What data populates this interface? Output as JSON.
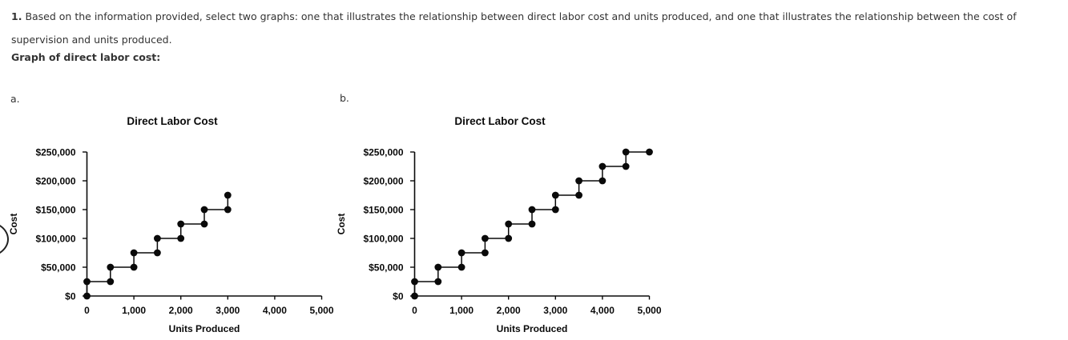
{
  "question": {
    "number": "1.",
    "text": "Based on the information provided, select two graphs: one that illustrates the relationship between direct labor cost and units produced, and one that illustrates the relationship between the cost of supervision and units produced.",
    "subheading": "Graph of direct labor cost:"
  },
  "options": [
    {
      "label": "a."
    },
    {
      "label": "b."
    }
  ],
  "annotation": {
    "type": "partial-circle-mark",
    "position": "left-edge"
  },
  "colors": {
    "chart_ink": "#0a0a0a",
    "body_text": "#333333"
  },
  "chart_data": [
    {
      "type": "line",
      "subtype": "step",
      "option": "a",
      "title": "Direct Labor Cost",
      "xlabel": "Units Produced",
      "ylabel": "Cost",
      "xlim": [
        0,
        5000
      ],
      "ylim": [
        0,
        250000
      ],
      "xticks": [
        0,
        1000,
        2000,
        3000,
        4000,
        5000
      ],
      "xtick_labels": [
        "0",
        "1,000",
        "2,000",
        "3,000",
        "4,000",
        "5,000"
      ],
      "yticks": [
        0,
        50000,
        100000,
        150000,
        200000,
        250000
      ],
      "ytick_labels": [
        "$0",
        "$50,000",
        "$100,000",
        "$150,000",
        "$200,000",
        "$250,000"
      ],
      "grid": false,
      "legend": false,
      "marker": "filled-dot",
      "points": [
        [
          0,
          0
        ],
        [
          0,
          25000
        ],
        [
          500,
          25000
        ],
        [
          500,
          50000
        ],
        [
          1000,
          50000
        ],
        [
          1000,
          75000
        ],
        [
          1500,
          75000
        ],
        [
          1500,
          100000
        ],
        [
          2000,
          100000
        ],
        [
          2000,
          125000
        ],
        [
          2500,
          125000
        ],
        [
          2500,
          150000
        ],
        [
          3000,
          150000
        ],
        [
          3000,
          175000
        ]
      ]
    },
    {
      "type": "line",
      "subtype": "step",
      "option": "b",
      "title": "Direct Labor Cost",
      "xlabel": "Units Produced",
      "ylabel": "Cost",
      "xlim": [
        0,
        5000
      ],
      "ylim": [
        0,
        250000
      ],
      "xticks": [
        0,
        1000,
        2000,
        3000,
        4000,
        5000
      ],
      "xtick_labels": [
        "0",
        "1,000",
        "2,000",
        "3,000",
        "4,000",
        "5,000"
      ],
      "yticks": [
        0,
        50000,
        100000,
        150000,
        200000,
        250000
      ],
      "ytick_labels": [
        "$0",
        "$50,000",
        "$100,000",
        "$150,000",
        "$200,000",
        "$250,000"
      ],
      "grid": false,
      "legend": false,
      "marker": "filled-dot",
      "points": [
        [
          0,
          0
        ],
        [
          0,
          25000
        ],
        [
          500,
          25000
        ],
        [
          500,
          50000
        ],
        [
          1000,
          50000
        ],
        [
          1000,
          75000
        ],
        [
          1500,
          75000
        ],
        [
          1500,
          100000
        ],
        [
          2000,
          100000
        ],
        [
          2000,
          125000
        ],
        [
          2500,
          125000
        ],
        [
          2500,
          150000
        ],
        [
          3000,
          150000
        ],
        [
          3000,
          175000
        ],
        [
          3500,
          175000
        ],
        [
          3500,
          200000
        ],
        [
          4000,
          200000
        ],
        [
          4000,
          225000
        ],
        [
          4500,
          225000
        ],
        [
          4500,
          250000
        ],
        [
          5000,
          250000
        ]
      ]
    }
  ]
}
